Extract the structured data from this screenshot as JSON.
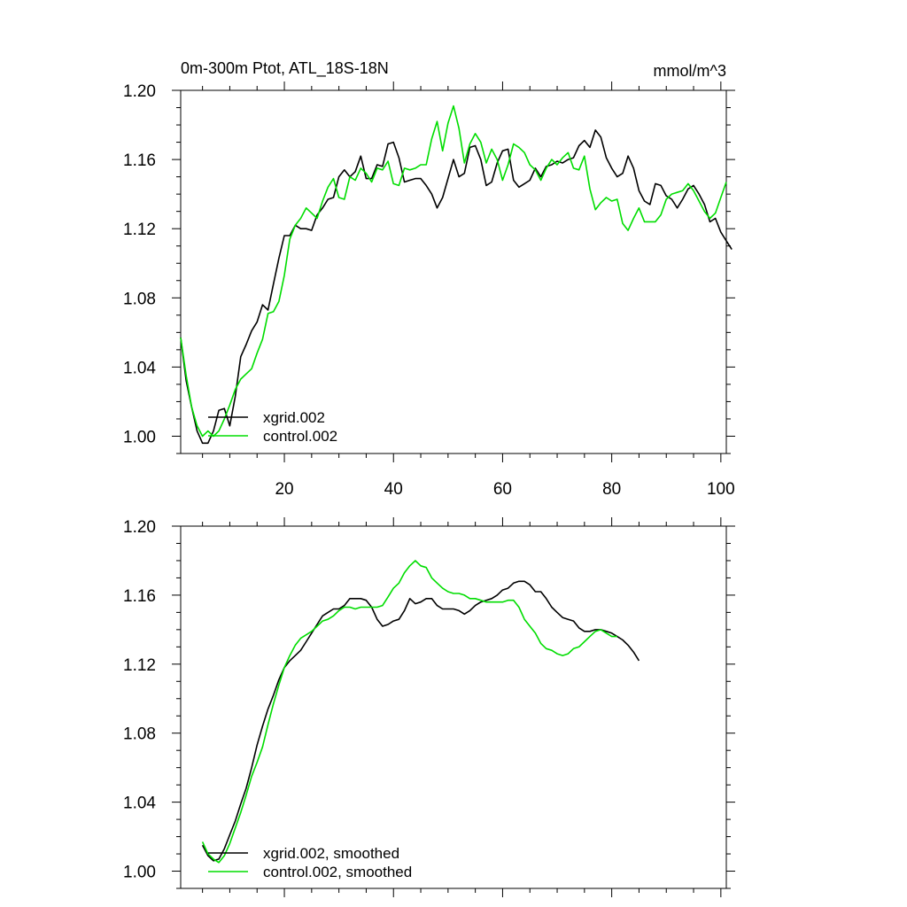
{
  "chart_data": [
    {
      "type": "line",
      "title": "0m-300m Ptot, ATL_18S-18N",
      "units": "mmol/m^3",
      "xlabel": "",
      "ylabel": "",
      "xlim": [
        1,
        101
      ],
      "ylim": [
        0.99,
        1.2
      ],
      "x_ticks": [
        "20",
        "40",
        "60",
        "80",
        "100"
      ],
      "y_ticks": [
        "1.00",
        "1.04",
        "1.08",
        "1.12",
        "1.16",
        "1.20"
      ],
      "legend_position": "bottom-left",
      "series": [
        {
          "name": "xgrid.002",
          "color": "#000000",
          "x_start": 1,
          "values": [
            1.057,
            1.032,
            1.017,
            1.003,
            0.996,
            0.996,
            1.003,
            1.015,
            1.016,
            1.006,
            1.023,
            1.046,
            1.053,
            1.061,
            1.066,
            1.076,
            1.073,
            1.088,
            1.103,
            1.116,
            1.116,
            1.122,
            1.12,
            1.12,
            1.119,
            1.128,
            1.132,
            1.137,
            1.138,
            1.15,
            1.154,
            1.15,
            1.153,
            1.162,
            1.149,
            1.149,
            1.157,
            1.156,
            1.169,
            1.17,
            1.161,
            1.147,
            1.148,
            1.149,
            1.149,
            1.145,
            1.14,
            1.132,
            1.138,
            1.149,
            1.16,
            1.15,
            1.152,
            1.167,
            1.168,
            1.16,
            1.145,
            1.147,
            1.158,
            1.165,
            1.166,
            1.148,
            1.144,
            1.146,
            1.148,
            1.155,
            1.15,
            1.156,
            1.157,
            1.159,
            1.158,
            1.16,
            1.161,
            1.168,
            1.171,
            1.167,
            1.177,
            1.173,
            1.161,
            1.155,
            1.15,
            1.152,
            1.162,
            1.155,
            1.142,
            1.136,
            1.134,
            1.146,
            1.145,
            1.139,
            1.137,
            1.132,
            1.137,
            1.143,
            1.145,
            1.14,
            1.134,
            1.124,
            1.126,
            1.118,
            1.113,
            1.108
          ]
        },
        {
          "name": "control.002",
          "color": "#00dd00",
          "x_start": 1,
          "values": [
            1.057,
            1.035,
            1.017,
            1.006,
            1.0,
            1.003,
            1.0,
            1.003,
            1.01,
            1.018,
            1.027,
            1.033,
            1.036,
            1.039,
            1.048,
            1.056,
            1.071,
            1.072,
            1.078,
            1.093,
            1.114,
            1.122,
            1.126,
            1.132,
            1.129,
            1.126,
            1.136,
            1.144,
            1.149,
            1.138,
            1.137,
            1.15,
            1.148,
            1.155,
            1.152,
            1.147,
            1.155,
            1.154,
            1.159,
            1.146,
            1.145,
            1.155,
            1.154,
            1.155,
            1.157,
            1.157,
            1.172,
            1.182,
            1.165,
            1.181,
            1.191,
            1.178,
            1.158,
            1.169,
            1.175,
            1.17,
            1.158,
            1.166,
            1.16,
            1.148,
            1.157,
            1.169,
            1.167,
            1.164,
            1.157,
            1.154,
            1.148,
            1.155,
            1.16,
            1.157,
            1.161,
            1.164,
            1.155,
            1.154,
            1.162,
            1.143,
            1.131,
            1.135,
            1.138,
            1.136,
            1.137,
            1.123,
            1.119,
            1.126,
            1.132,
            1.124,
            1.124,
            1.124,
            1.128,
            1.137,
            1.14,
            1.141,
            1.142,
            1.146,
            1.142,
            1.136,
            1.13,
            1.126,
            1.129,
            1.138,
            1.147
          ]
        }
      ]
    },
    {
      "type": "line",
      "title": "",
      "units": "",
      "xlabel": "",
      "ylabel": "",
      "xlim": [
        1,
        101
      ],
      "ylim": [
        0.99,
        1.2
      ],
      "x_ticks": [],
      "y_ticks": [
        "1.00",
        "1.04",
        "1.08",
        "1.12",
        "1.16",
        "1.20"
      ],
      "legend_position": "bottom-left",
      "series": [
        {
          "name": "xgrid.002, smoothed",
          "color": "#000000",
          "x_start": 5,
          "values": [
            1.015,
            1.009,
            1.006,
            1.007,
            1.013,
            1.021,
            1.029,
            1.039,
            1.048,
            1.06,
            1.073,
            1.084,
            1.094,
            1.102,
            1.111,
            1.118,
            1.122,
            1.125,
            1.128,
            1.133,
            1.138,
            1.143,
            1.148,
            1.15,
            1.152,
            1.152,
            1.154,
            1.158,
            1.158,
            1.158,
            1.157,
            1.153,
            1.146,
            1.142,
            1.143,
            1.145,
            1.146,
            1.151,
            1.158,
            1.155,
            1.156,
            1.158,
            1.158,
            1.154,
            1.152,
            1.152,
            1.152,
            1.151,
            1.149,
            1.151,
            1.154,
            1.156,
            1.157,
            1.158,
            1.16,
            1.163,
            1.164,
            1.167,
            1.168,
            1.168,
            1.166,
            1.162,
            1.162,
            1.158,
            1.153,
            1.15,
            1.147,
            1.146,
            1.145,
            1.141,
            1.139,
            1.139,
            1.14,
            1.14,
            1.139,
            1.138,
            1.136,
            1.134,
            1.131,
            1.127,
            1.122
          ]
        },
        {
          "name": "control.002, smoothed",
          "color": "#00dd00",
          "x_start": 5,
          "values": [
            1.017,
            1.01,
            1.007,
            1.005,
            1.009,
            1.016,
            1.025,
            1.034,
            1.044,
            1.055,
            1.063,
            1.072,
            1.085,
            1.097,
            1.108,
            1.118,
            1.125,
            1.131,
            1.135,
            1.137,
            1.139,
            1.142,
            1.145,
            1.146,
            1.148,
            1.151,
            1.153,
            1.153,
            1.152,
            1.153,
            1.153,
            1.153,
            1.153,
            1.154,
            1.159,
            1.164,
            1.167,
            1.173,
            1.177,
            1.18,
            1.177,
            1.176,
            1.17,
            1.167,
            1.164,
            1.162,
            1.161,
            1.161,
            1.16,
            1.158,
            1.158,
            1.157,
            1.156,
            1.156,
            1.156,
            1.156,
            1.157,
            1.157,
            1.153,
            1.146,
            1.142,
            1.138,
            1.132,
            1.129,
            1.128,
            1.126,
            1.125,
            1.126,
            1.129,
            1.13,
            1.133,
            1.136,
            1.139,
            1.14,
            1.138,
            1.136,
            1.136
          ]
        }
      ]
    }
  ]
}
